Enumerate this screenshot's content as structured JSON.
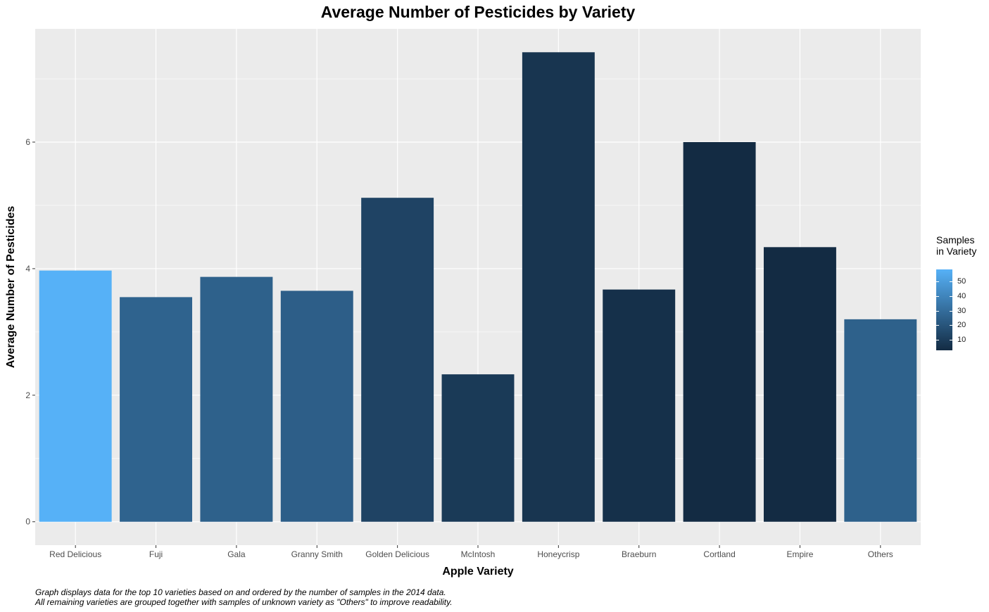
{
  "chart_data": {
    "type": "bar",
    "title": "Average Number of Pesticides by Variety",
    "xlabel": "Apple Variety",
    "ylabel": "Average Number of Pesticides",
    "categories": [
      "Red Delicious",
      "Fuji",
      "Gala",
      "Granny Smith",
      "Golden Delicious",
      "McIntosh",
      "Honeycrisp",
      "Braeburn",
      "Cortland",
      "Empire",
      "Others"
    ],
    "values": [
      3.97,
      3.55,
      3.87,
      3.65,
      5.12,
      2.33,
      7.42,
      3.67,
      6.0,
      4.34,
      3.2
    ],
    "fill_values": [
      58,
      26,
      25,
      24,
      13,
      9,
      7,
      5,
      3,
      3,
      25
    ],
    "ylim": [
      -0.37,
      7.79
    ],
    "yticks": [
      0,
      2,
      4,
      6
    ],
    "grid": true,
    "legend": {
      "title": "Samples\nin Variety",
      "position": "right",
      "type": "colorbar",
      "range": [
        3,
        58
      ],
      "ticks": [
        10,
        20,
        30,
        40,
        50
      ],
      "low_color": "#132b43",
      "high_color": "#56b1f7"
    }
  },
  "caption": {
    "line1": "Graph displays data for the top 10 varieties based on and ordered by the number of samples in the 2014 data.",
    "line2": "All remaining varieties are grouped together with samples of unknown variety as \"Others\" to improve readability."
  },
  "colors": {
    "panel_background": "#ebebeb",
    "grid_line": "#ffffff"
  }
}
